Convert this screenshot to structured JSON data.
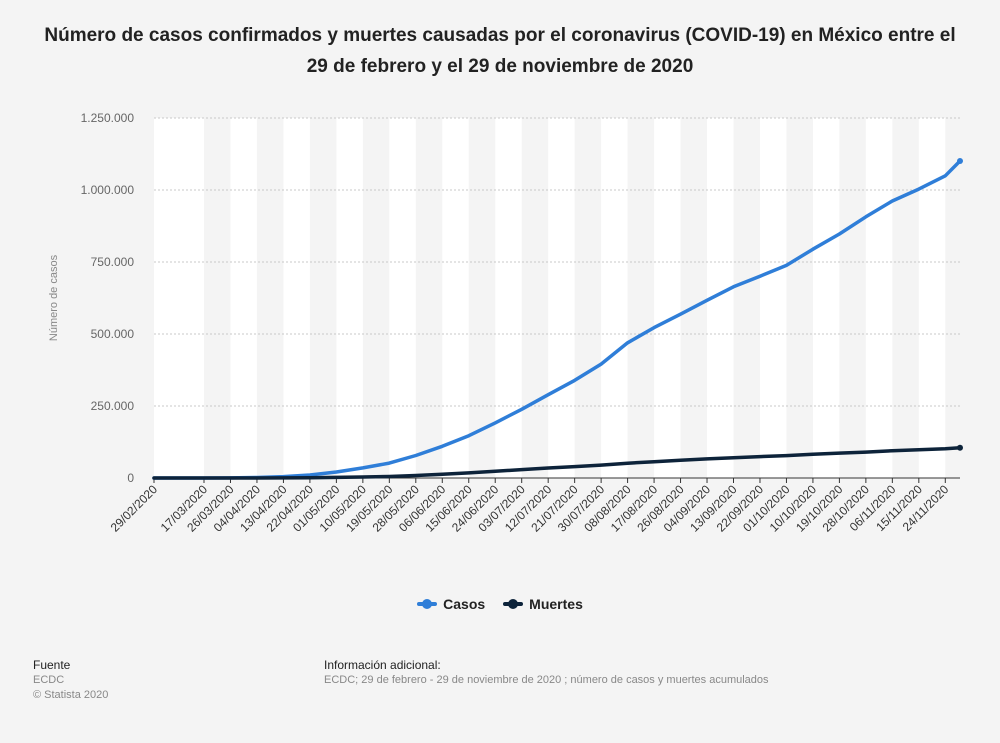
{
  "title": "Número de casos confirmados y muertes causadas por el coronavirus (COVID-19) en México entre el 29 de febrero y el 29 de noviembre de 2020",
  "legend": {
    "series_1": "Casos",
    "series_2": "Muertes"
  },
  "footer": {
    "source_heading": "Fuente",
    "source": "ECDC",
    "copyright": "© Statista 2020",
    "info_heading": "Información adicional:",
    "info": "ECDC; 29 de febrero - 29 de noviembre de 2020 ; número de casos y muertes acumulados"
  },
  "colors": {
    "casos": "#2f7ed8",
    "muertes": "#0d233a",
    "band": "#ffffff",
    "grid": "#c8c8c8"
  },
  "chart_data": {
    "type": "line",
    "title": "Número de casos confirmados y muertes causadas por el coronavirus (COVID-19) en México entre el 29 de febrero y el 29 de noviembre de 2020",
    "xlabel": "",
    "ylabel": "Número de casos",
    "x_start": "29/02/2020",
    "x_end": "29/11/2020",
    "x_tick_labels": [
      "29/02/2020",
      "17/03/2020",
      "26/03/2020",
      "04/04/2020",
      "13/04/2020",
      "22/04/2020",
      "01/05/2020",
      "10/05/2020",
      "19/05/2020",
      "28/05/2020",
      "06/06/2020",
      "15/06/2020",
      "24/06/2020",
      "03/07/2020",
      "12/07/2020",
      "21/07/2020",
      "30/07/2020",
      "08/08/2020",
      "17/08/2020",
      "26/08/2020",
      "04/09/2020",
      "13/09/2020",
      "22/09/2020",
      "01/10/2020",
      "10/10/2020",
      "19/10/2020",
      "28/10/2020",
      "06/11/2020",
      "15/11/2020",
      "24/11/2020"
    ],
    "y_tick_labels": [
      "0",
      "250.000",
      "500.000",
      "750.000",
      "1.000.000",
      "1.250.000"
    ],
    "ylim": [
      0,
      1250000
    ],
    "grid": true,
    "legend_position": "bottom",
    "series": [
      {
        "name": "Casos",
        "points": [
          [
            "29/02/2020",
            1
          ],
          [
            "17/03/2020",
            82
          ],
          [
            "26/03/2020",
            475
          ],
          [
            "04/04/2020",
            1890
          ],
          [
            "13/04/2020",
            5014
          ],
          [
            "22/04/2020",
            10544
          ],
          [
            "01/05/2020",
            20739
          ],
          [
            "10/05/2020",
            35022
          ],
          [
            "19/05/2020",
            51633
          ],
          [
            "28/05/2020",
            78023
          ],
          [
            "06/06/2020",
            110026
          ],
          [
            "15/06/2020",
            146837
          ],
          [
            "24/06/2020",
            191410
          ],
          [
            "03/07/2020",
            238511
          ],
          [
            "12/07/2020",
            289174
          ],
          [
            "21/07/2020",
            338913
          ],
          [
            "30/07/2020",
            395489
          ],
          [
            "08/08/2020",
            469407
          ],
          [
            "17/08/2020",
            522162
          ],
          [
            "26/08/2020",
            568621
          ],
          [
            "04/09/2020",
            616894
          ],
          [
            "13/09/2020",
            663973
          ],
          [
            "22/09/2020",
            700580
          ],
          [
            "01/10/2020",
            738163
          ],
          [
            "10/10/2020",
            794608
          ],
          [
            "19/10/2020",
            847108
          ],
          [
            "28/10/2020",
            906863
          ],
          [
            "06/11/2020",
            961938
          ],
          [
            "15/11/2020",
            1003253
          ],
          [
            "24/11/2020",
            1049358
          ],
          [
            "29/11/2020",
            1100683
          ]
        ]
      },
      {
        "name": "Muertes",
        "points": [
          [
            "29/02/2020",
            0
          ],
          [
            "17/03/2020",
            0
          ],
          [
            "26/03/2020",
            6
          ],
          [
            "04/04/2020",
            79
          ],
          [
            "13/04/2020",
            332
          ],
          [
            "22/04/2020",
            970
          ],
          [
            "01/05/2020",
            1972
          ],
          [
            "10/05/2020",
            3465
          ],
          [
            "19/05/2020",
            5332
          ],
          [
            "28/05/2020",
            8597
          ],
          [
            "06/06/2020",
            13170
          ],
          [
            "15/06/2020",
            17580
          ],
          [
            "24/06/2020",
            23377
          ],
          [
            "03/07/2020",
            29189
          ],
          [
            "12/07/2020",
            34730
          ],
          [
            "21/07/2020",
            39485
          ],
          [
            "30/07/2020",
            44876
          ],
          [
            "08/08/2020",
            51311
          ],
          [
            "17/08/2020",
            56757
          ],
          [
            "26/08/2020",
            61450
          ],
          [
            "04/09/2020",
            66329
          ],
          [
            "13/09/2020",
            70604
          ],
          [
            "22/09/2020",
            74348
          ],
          [
            "01/10/2020",
            77646
          ],
          [
            "10/10/2020",
            82726
          ],
          [
            "19/10/2020",
            86338
          ],
          [
            "28/10/2020",
            89814
          ],
          [
            "06/11/2020",
            94808
          ],
          [
            "15/11/2020",
            98259
          ],
          [
            "24/11/2020",
            101676
          ],
          [
            "29/11/2020",
            104873
          ]
        ]
      }
    ]
  }
}
